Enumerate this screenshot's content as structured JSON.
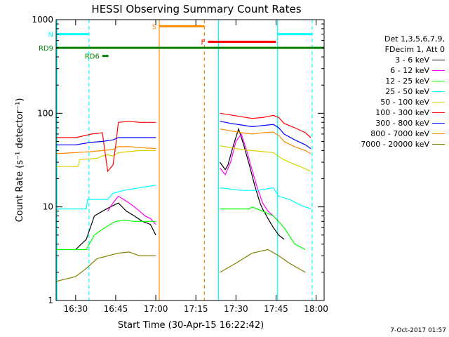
{
  "chart_data": {
    "type": "line",
    "title": "HESSI Observing Summary Count Rates",
    "xlabel": "Start Time (30-Apr-15 16:22:42)",
    "ylabel": "Count Rate (s⁻¹ detector⁻¹)",
    "x_ticks": [
      "16:30",
      "16:45",
      "17:00",
      "17:15",
      "17:30",
      "17:45",
      "18:00"
    ],
    "x_tick_minutes": [
      990,
      1005,
      1020,
      1035,
      1050,
      1065,
      1080
    ],
    "xlim_minutes": [
      982.7,
      1083
    ],
    "y_scale": "log",
    "ylim": [
      1,
      1000
    ],
    "y_ticks": [
      "1",
      "10",
      "100",
      "1000"
    ],
    "legend": {
      "header": [
        "Det 1,3,5,6,7,9,",
        "FDecim 1, Att 0"
      ],
      "placement": "right",
      "entries": [
        {
          "label": "3 - 6 keV",
          "color": "#000000"
        },
        {
          "label": "6 - 12 keV",
          "color": "#ff00ff"
        },
        {
          "label": "12 - 25 keV",
          "color": "#00ff00"
        },
        {
          "label": "25 - 50 keV",
          "color": "#00ffff"
        },
        {
          "label": "50 - 100 keV",
          "color": "#d4d400"
        },
        {
          "label": "100 - 300 keV",
          "color": "#ff0000"
        },
        {
          "label": "300 - 800 keV",
          "color": "#0000ff"
        },
        {
          "label": "800 - 7000 keV",
          "color": "#ff8c00"
        },
        {
          "label": "7000 - 20000 keV",
          "color": "#808000"
        }
      ]
    },
    "series": [
      {
        "name": "3 - 6 keV",
        "color": "#000000",
        "segments": [
          [
            [
              990,
              3.5
            ],
            [
              994,
              4.5
            ],
            [
              997,
              8
            ],
            [
              1000,
              9
            ],
            [
              1003,
              10
            ],
            [
              1006,
              11
            ],
            [
              1009,
              9
            ],
            [
              1012,
              8
            ],
            [
              1015,
              7
            ],
            [
              1018,
              6.5
            ],
            [
              1020,
              5
            ]
          ],
          [
            [
              1044,
              30
            ],
            [
              1046,
              25
            ],
            [
              1047,
              28
            ],
            [
              1049,
              45
            ],
            [
              1051,
              68
            ],
            [
              1053,
              45
            ],
            [
              1055,
              28
            ],
            [
              1057,
              17
            ],
            [
              1059,
              11
            ],
            [
              1060,
              9.5
            ],
            [
              1062,
              7.5
            ],
            [
              1064,
              6
            ],
            [
              1066,
              5
            ],
            [
              1068,
              4.5
            ]
          ]
        ]
      },
      {
        "name": "6 - 12 keV",
        "color": "#ff00ff",
        "segments": [
          [
            [
              1002,
              9
            ],
            [
              1004,
              11
            ],
            [
              1006,
              13
            ],
            [
              1008,
              12
            ],
            [
              1010,
              11
            ],
            [
              1012,
              10
            ],
            [
              1014,
              9
            ],
            [
              1016,
              8
            ],
            [
              1018,
              7.5
            ],
            [
              1020,
              6.5
            ]
          ],
          [
            [
              1044,
              26
            ],
            [
              1046,
              22
            ],
            [
              1048,
              30
            ],
            [
              1050,
              50
            ],
            [
              1052,
              60
            ],
            [
              1054,
              40
            ],
            [
              1056,
              25
            ],
            [
              1058,
              16
            ],
            [
              1060,
              11
            ],
            [
              1062,
              9
            ],
            [
              1064,
              8
            ],
            [
              1066,
              7
            ]
          ]
        ]
      },
      {
        "name": "12 - 25 keV",
        "color": "#00ff00",
        "segments": [
          [
            [
              982.7,
              3.5
            ],
            [
              994,
              3.5
            ],
            [
              997,
              5
            ],
            [
              999,
              5.5
            ],
            [
              1001,
              6
            ],
            [
              1003,
              6.5
            ],
            [
              1005,
              7
            ],
            [
              1008,
              7.2
            ],
            [
              1012,
              7
            ],
            [
              1016,
              7
            ],
            [
              1020,
              7
            ]
          ],
          [
            [
              1044,
              9.5
            ],
            [
              1055,
              9.5
            ],
            [
              1056,
              10
            ],
            [
              1060,
              9
            ],
            [
              1064,
              8
            ],
            [
              1068,
              6
            ],
            [
              1072,
              4
            ],
            [
              1076,
              3.5
            ]
          ]
        ]
      },
      {
        "name": "25 - 50 keV",
        "color": "#00ffff",
        "segments": [
          [
            [
              982.7,
              9.5
            ],
            [
              994,
              9.5
            ],
            [
              994.5,
              12
            ],
            [
              1002,
              12
            ],
            [
              1004,
              14
            ],
            [
              1008,
              15
            ],
            [
              1014,
              16
            ],
            [
              1020,
              17
            ]
          ],
          [
            [
              1044,
              16
            ],
            [
              1052,
              15
            ],
            [
              1058,
              15
            ],
            [
              1064,
              16
            ],
            [
              1066,
              13
            ],
            [
              1070,
              12
            ],
            [
              1074,
              10.5
            ],
            [
              1078,
              9.5
            ]
          ]
        ]
      },
      {
        "name": "50 - 100 keV",
        "color": "#d4d400",
        "segments": [
          [
            [
              982.7,
              27
            ],
            [
              991,
              27
            ],
            [
              991.5,
              32
            ],
            [
              998,
              33
            ],
            [
              1000,
              35
            ],
            [
              1002,
              36
            ],
            [
              1004,
              35
            ],
            [
              1006,
              38
            ],
            [
              1010,
              39
            ],
            [
              1014,
              40
            ],
            [
              1020,
              40
            ]
          ],
          [
            [
              1044,
              45
            ],
            [
              1048,
              43
            ],
            [
              1052,
              41
            ],
            [
              1056,
              40
            ],
            [
              1060,
              39
            ],
            [
              1064,
              38
            ],
            [
              1067,
              33
            ],
            [
              1070,
              30
            ],
            [
              1074,
              27
            ],
            [
              1078,
              24
            ]
          ]
        ]
      },
      {
        "name": "100 - 300 keV",
        "color": "#ff0000",
        "segments": [
          [
            [
              982.7,
              55
            ],
            [
              990,
              55
            ],
            [
              996,
              60
            ],
            [
              1000,
              62
            ],
            [
              1002,
              24
            ],
            [
              1004,
              28
            ],
            [
              1005,
              45
            ],
            [
              1006,
              80
            ],
            [
              1010,
              82
            ],
            [
              1014,
              80
            ],
            [
              1020,
              80
            ]
          ],
          [
            [
              1044,
              100
            ],
            [
              1048,
              96
            ],
            [
              1052,
              92
            ],
            [
              1056,
              88
            ],
            [
              1060,
              90
            ],
            [
              1064,
              95
            ],
            [
              1066,
              90
            ],
            [
              1068,
              78
            ],
            [
              1072,
              70
            ],
            [
              1076,
              62
            ],
            [
              1078,
              55
            ]
          ]
        ]
      },
      {
        "name": "300 - 800 keV",
        "color": "#0000ff",
        "segments": [
          [
            [
              982.7,
              46
            ],
            [
              990,
              46
            ],
            [
              996,
              49
            ],
            [
              1000,
              50
            ],
            [
              1004,
              52
            ],
            [
              1006,
              55
            ],
            [
              1010,
              55
            ],
            [
              1014,
              55
            ],
            [
              1020,
              55
            ]
          ],
          [
            [
              1044,
              82
            ],
            [
              1048,
              78
            ],
            [
              1052,
              75
            ],
            [
              1056,
              72
            ],
            [
              1060,
              74
            ],
            [
              1064,
              76
            ],
            [
              1066,
              70
            ],
            [
              1068,
              60
            ],
            [
              1072,
              52
            ],
            [
              1076,
              46
            ],
            [
              1078,
              42
            ]
          ]
        ]
      },
      {
        "name": "800 - 7000 keV",
        "color": "#ff8c00",
        "segments": [
          [
            [
              982.7,
              37
            ],
            [
              990,
              38
            ],
            [
              996,
              39
            ],
            [
              1000,
              40
            ],
            [
              1004,
              41
            ],
            [
              1006,
              44
            ],
            [
              1010,
              44
            ],
            [
              1014,
              43
            ],
            [
              1020,
              42
            ]
          ],
          [
            [
              1044,
              68
            ],
            [
              1048,
              65
            ],
            [
              1052,
              62
            ],
            [
              1056,
              60
            ],
            [
              1060,
              62
            ],
            [
              1064,
              63
            ],
            [
              1066,
              58
            ],
            [
              1068,
              50
            ],
            [
              1072,
              44
            ],
            [
              1076,
              40
            ],
            [
              1078,
              37
            ]
          ]
        ]
      },
      {
        "name": "7000 - 20000 keV",
        "color": "#808000",
        "segments": [
          [
            [
              982.7,
              1.6
            ],
            [
              990,
              1.8
            ],
            [
              994,
              2.2
            ],
            [
              998,
              2.8
            ],
            [
              1002,
              3
            ],
            [
              1006,
              3.2
            ],
            [
              1010,
              3.3
            ],
            [
              1014,
              3
            ],
            [
              1020,
              3
            ]
          ],
          [
            [
              1044,
              2
            ],
            [
              1050,
              2.5
            ],
            [
              1056,
              3.2
            ],
            [
              1062,
              3.5
            ],
            [
              1066,
              3
            ],
            [
              1070,
              2.5
            ],
            [
              1076,
              2
            ]
          ]
        ]
      }
    ],
    "vertical_markers": [
      {
        "color": "#00ffff",
        "style": "solid",
        "x": 983
      },
      {
        "color": "#00ffff",
        "style": "dashed",
        "x": 995
      },
      {
        "color": "#ff8c00",
        "style": "solid",
        "x": 1021.3
      },
      {
        "color": "#ff8c00",
        "style": "dashed",
        "x": 1038.2
      },
      {
        "color": "#00ffff",
        "style": "solid",
        "x": 1043.5
      },
      {
        "color": "#00ffff",
        "style": "solid",
        "x": 1065.6
      },
      {
        "color": "#00ffff",
        "style": "dashed",
        "x": 1078.5
      }
    ],
    "flag_bars": [
      {
        "label": "N",
        "color": "#00ffff",
        "y": 700,
        "segments": [
          [
            982.7,
            994.7
          ],
          [
            1065.6,
            1078.5
          ]
        ]
      },
      {
        "label": "S",
        "color": "#ff8c00",
        "y": 850,
        "segments": [
          [
            1021.3,
            1038.2
          ]
        ]
      },
      {
        "label": "F",
        "color": "#ff0000",
        "y": 580,
        "segments": [
          [
            1039.5,
            1065
          ]
        ]
      },
      {
        "label": "RD6",
        "color": "#008000",
        "y": 410,
        "segments": [
          [
            1000,
            1002.3
          ]
        ]
      },
      {
        "label": "RD9",
        "color": "#008000",
        "y": 500,
        "segments": [
          [
            982.7,
            1083
          ]
        ]
      }
    ]
  },
  "timestamp": "7-Oct-2017 01:57"
}
